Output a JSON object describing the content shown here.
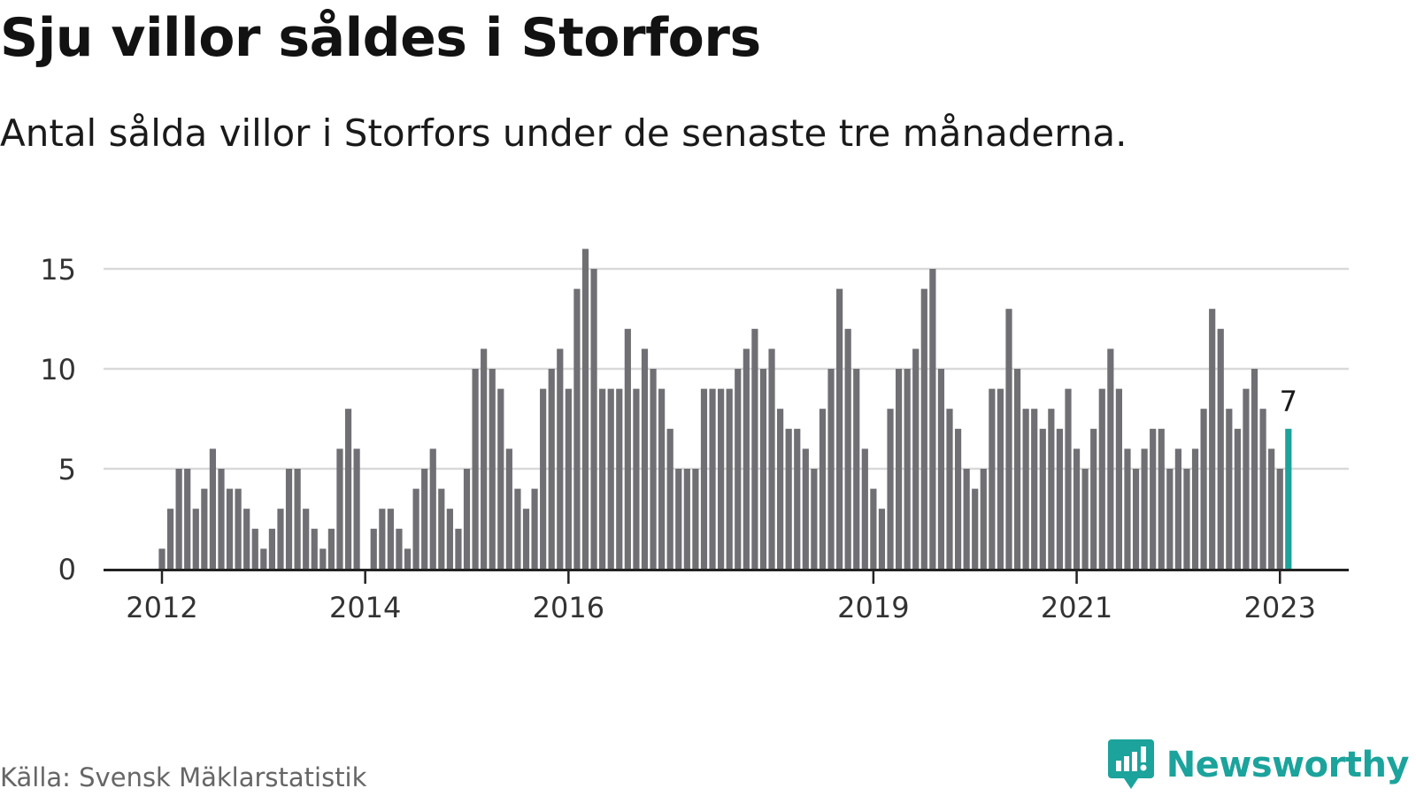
{
  "header": {
    "title": "Sju villor såldes i Storfors",
    "subtitle": "Antal sålda villor i Storfors under de senaste tre månaderna."
  },
  "footer": {
    "source": "Källa: Svensk Mäklarstatistik",
    "brand": "Newsworthy",
    "brand_icon": "newsworthy-logo-icon"
  },
  "colors": {
    "bar": "#707074",
    "highlight": "#1ba39c",
    "grid": "#d9d9d9",
    "axis": "#222222",
    "brand": "#1ba39c"
  },
  "chart_data": {
    "type": "bar",
    "title": "Sju villor såldes i Storfors",
    "subtitle": "Antal sålda villor i Storfors under de senaste tre månaderna.",
    "xlabel": "",
    "ylabel": "",
    "ylim": [
      0,
      16
    ],
    "yticks": [
      0,
      5,
      10,
      15
    ],
    "xtick_labels": [
      {
        "label": "2012",
        "index": 0
      },
      {
        "label": "2014",
        "index": 24
      },
      {
        "label": "2016",
        "index": 48
      },
      {
        "label": "2019",
        "index": 84
      },
      {
        "label": "2021",
        "index": 108
      },
      {
        "label": "2023",
        "index": 132
      }
    ],
    "grid": true,
    "highlight_index": 133,
    "highlight_label": "7",
    "values": [
      1,
      3,
      5,
      5,
      3,
      4,
      6,
      5,
      4,
      4,
      3,
      2,
      1,
      2,
      3,
      5,
      5,
      3,
      2,
      1,
      2,
      6,
      8,
      6,
      0,
      2,
      3,
      3,
      2,
      1,
      4,
      5,
      6,
      4,
      3,
      2,
      5,
      10,
      11,
      10,
      9,
      6,
      4,
      3,
      4,
      9,
      10,
      11,
      9,
      14,
      16,
      15,
      9,
      9,
      9,
      12,
      9,
      11,
      10,
      9,
      7,
      5,
      5,
      5,
      9,
      9,
      9,
      9,
      10,
      11,
      12,
      10,
      11,
      8,
      7,
      7,
      6,
      5,
      8,
      10,
      14,
      12,
      10,
      6,
      4,
      3,
      8,
      10,
      10,
      11,
      14,
      15,
      10,
      8,
      7,
      5,
      4,
      5,
      9,
      9,
      13,
      10,
      8,
      8,
      7,
      8,
      7,
      9,
      6,
      5,
      7,
      9,
      11,
      9,
      6,
      5,
      6,
      7,
      7,
      5,
      6,
      5,
      6,
      8,
      13,
      12,
      8,
      7,
      9,
      10,
      8,
      6,
      5,
      7
    ]
  }
}
